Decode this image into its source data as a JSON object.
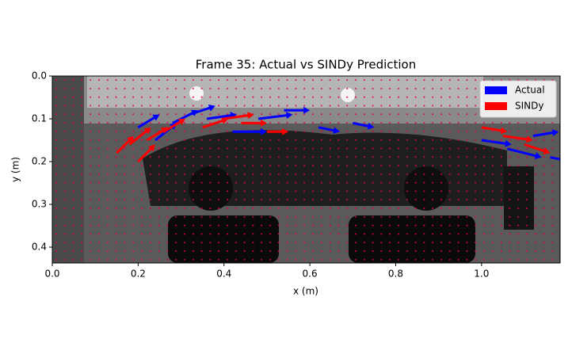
{
  "chart_data": {
    "type": "quiver",
    "title": "Frame 35: Actual vs SINDy Prediction",
    "x_label": "x (m)",
    "y_label": "y (m)",
    "xlim": [
      0,
      1.183
    ],
    "ylim": [
      0,
      0.437
    ],
    "y_inverted": true,
    "xticks": [
      {
        "value": 0,
        "label": "0.0"
      },
      {
        "value": 0.2,
        "label": "0.2"
      },
      {
        "value": 0.4,
        "label": "0.4"
      },
      {
        "value": 0.6,
        "label": "0.6"
      },
      {
        "value": 0.8,
        "label": "0.8"
      },
      {
        "value": 1.0,
        "label": "1.0"
      }
    ],
    "yticks": [
      {
        "value": 0,
        "label": "0.0"
      },
      {
        "value": 0.1,
        "label": "0.1"
      },
      {
        "value": 0.2,
        "label": "0.2"
      },
      {
        "value": 0.3,
        "label": "0.3"
      },
      {
        "value": 0.4,
        "label": "0.4"
      }
    ],
    "legend": "upper right",
    "series": [
      {
        "name": "Actual",
        "color": "#0000ff",
        "x": [
          0.2,
          0.24,
          0.28,
          0.32,
          0.36,
          0.42,
          0.48,
          0.54,
          0.62,
          0.7,
          1.0,
          1.06,
          1.12,
          1.16
        ],
        "y": [
          0.12,
          0.15,
          0.11,
          0.09,
          0.1,
          0.13,
          0.1,
          0.08,
          0.12,
          0.11,
          0.15,
          0.17,
          0.14,
          0.19
        ],
        "u": [
          0.05,
          0.05,
          0.06,
          0.06,
          0.07,
          0.08,
          0.08,
          0.06,
          0.05,
          0.05,
          0.07,
          0.08,
          0.06,
          0.05
        ],
        "v": [
          -0.03,
          -0.04,
          -0.03,
          -0.02,
          -0.01,
          0,
          -0.01,
          0,
          0.01,
          0.01,
          0.01,
          0.02,
          -0.01,
          0.01
        ]
      },
      {
        "name": "SINDy",
        "color": "#ff0000",
        "x": [
          0.15,
          0.18,
          0.22,
          0.26,
          0.2,
          0.35,
          0.4,
          0.44,
          0.5,
          1.0,
          1.05,
          1.1
        ],
        "y": [
          0.18,
          0.16,
          0.15,
          0.13,
          0.2,
          0.12,
          0.1,
          0.11,
          0.13,
          0.12,
          0.14,
          0.16
        ],
        "u": [
          0.04,
          0.05,
          0.05,
          0.05,
          0.04,
          0.06,
          0.07,
          0.06,
          0.05,
          0.06,
          0.07,
          0.06
        ],
        "v": [
          -0.04,
          -0.04,
          -0.03,
          -0.03,
          -0.04,
          -0.02,
          -0.01,
          0,
          0,
          0.01,
          0.01,
          0.02
        ]
      }
    ]
  }
}
